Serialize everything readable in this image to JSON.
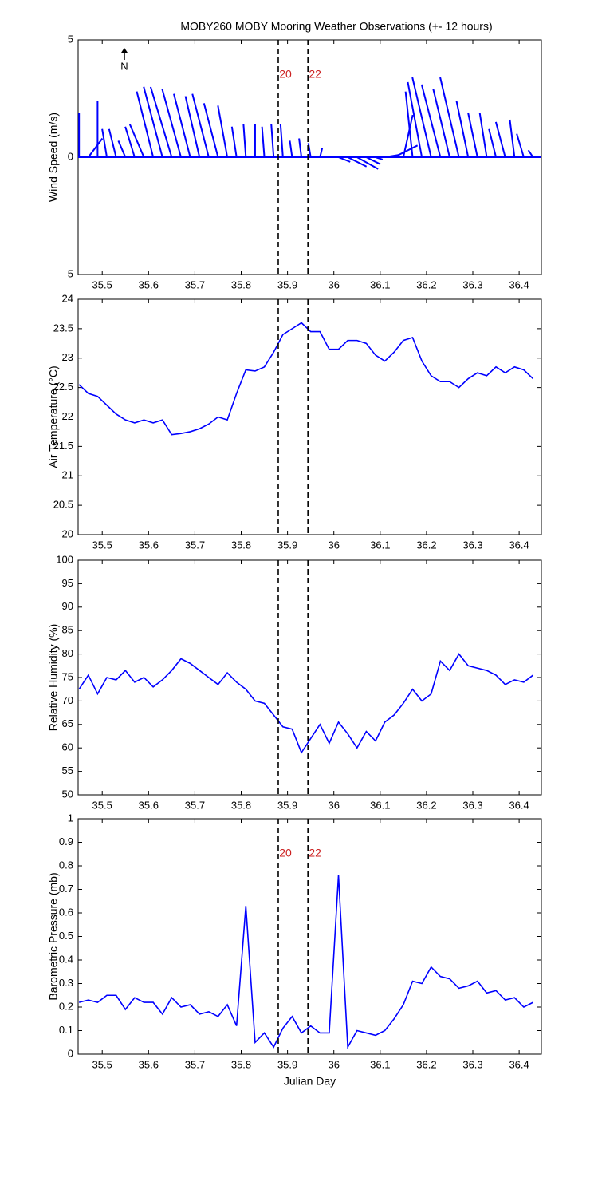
{
  "chart_data": [
    {
      "type": "stick",
      "title": "MOBY260 MOBY Mooring Weather Observations (+- 12 hours)",
      "ylabel": "Wind Speed (m/s)",
      "north_label": "N",
      "color": "#0000ff",
      "marker_color": "#cc2222",
      "x": [
        35.45,
        35.47,
        35.49,
        35.51,
        35.53,
        35.55,
        35.57,
        35.59,
        35.61,
        35.63,
        35.65,
        35.67,
        35.69,
        35.71,
        35.73,
        35.75,
        35.77,
        35.79,
        35.81,
        35.83,
        35.85,
        35.87,
        35.89,
        35.91,
        35.93,
        35.95,
        35.97,
        35.99,
        36.01,
        36.03,
        36.05,
        36.07,
        36.09,
        36.11,
        36.13,
        36.15,
        36.17,
        36.19,
        36.21,
        36.23,
        36.25,
        36.27,
        36.29,
        36.31,
        36.33,
        36.35,
        36.37,
        36.39,
        36.41,
        36.43
      ],
      "u": [
        0,
        0.6,
        0,
        -0.2,
        -0.3,
        -0.3,
        -0.4,
        -0.6,
        -0.7,
        -0.8,
        -0.9,
        -0.8,
        -0.7,
        -0.6,
        -0.7,
        -0.6,
        -0.4,
        -0.2,
        -0.1,
        0,
        -0.1,
        -0.1,
        -0.1,
        -0.1,
        -0.1,
        -0.1,
        0.1,
        0.1,
        0.5,
        0.8,
        0.9,
        0.6,
        0.3,
        0.6,
        1.0,
        0.4,
        -0.3,
        -0.6,
        -0.8,
        -0.8,
        -0.7,
        -0.8,
        -0.5,
        -0.4,
        -0.3,
        -0.3,
        -0.4,
        -0.2,
        -0.3,
        -0.2
      ],
      "v": [
        1.9,
        0.8,
        2.4,
        1.2,
        1.2,
        0.7,
        1.3,
        1.4,
        2.8,
        3.0,
        3.0,
        2.9,
        2.7,
        2.6,
        2.7,
        2.3,
        2.2,
        1.3,
        1.4,
        1.4,
        1.3,
        1.4,
        1.4,
        0.7,
        0.8,
        0.6,
        0.4,
        0,
        -0.2,
        -0.4,
        -0.5,
        -0.3,
        -0.1,
        0.1,
        0.5,
        1.8,
        2.8,
        3.2,
        3.4,
        3.1,
        2.9,
        3.4,
        2.4,
        1.9,
        1.9,
        1.2,
        1.5,
        1.6,
        1.0,
        0.3
      ],
      "xlim": [
        35.448,
        36.448
      ],
      "xticks": [
        35.5,
        35.6,
        35.7,
        35.8,
        35.9,
        36,
        36.1,
        36.2,
        36.3,
        36.4
      ],
      "ylim": [
        -5,
        5
      ],
      "yticks": [
        {
          "value": -5,
          "label": "5"
        },
        0,
        5
      ],
      "markers": [
        {
          "x": 35.88,
          "label": "20"
        },
        {
          "x": 35.944,
          "label": "22"
        }
      ]
    },
    {
      "type": "line",
      "ylabel": "Air Temperature (°C)",
      "color": "#0000ff",
      "x": [
        35.45,
        35.47,
        35.49,
        35.51,
        35.53,
        35.55,
        35.57,
        35.59,
        35.61,
        35.63,
        35.65,
        35.67,
        35.69,
        35.71,
        35.73,
        35.75,
        35.77,
        35.79,
        35.81,
        35.83,
        35.85,
        35.87,
        35.89,
        35.91,
        35.93,
        35.95,
        35.97,
        35.99,
        36.01,
        36.03,
        36.05,
        36.07,
        36.09,
        36.11,
        36.13,
        36.15,
        36.17,
        36.19,
        36.21,
        36.23,
        36.25,
        36.27,
        36.29,
        36.31,
        36.33,
        36.35,
        36.37,
        36.39,
        36.41,
        36.43
      ],
      "values": [
        22.55,
        22.4,
        22.35,
        22.2,
        22.05,
        21.95,
        21.9,
        21.95,
        21.9,
        21.95,
        21.7,
        21.72,
        21.75,
        21.8,
        21.88,
        22.0,
        21.95,
        22.4,
        22.8,
        22.78,
        22.85,
        23.1,
        23.4,
        23.5,
        23.6,
        23.45,
        23.45,
        23.15,
        23.15,
        23.3,
        23.3,
        23.25,
        23.05,
        22.95,
        23.1,
        23.3,
        23.35,
        22.95,
        22.7,
        22.6,
        22.6,
        22.5,
        22.65,
        22.75,
        22.7,
        22.85,
        22.75,
        22.85,
        22.8,
        22.65
      ],
      "xlim": [
        35.448,
        36.448
      ],
      "xticks": [
        35.5,
        35.6,
        35.7,
        35.8,
        35.9,
        36,
        36.1,
        36.2,
        36.3,
        36.4
      ],
      "ylim": [
        20,
        24
      ],
      "yticks": [
        20,
        20.5,
        21,
        21.5,
        22,
        22.5,
        23,
        23.5,
        24
      ],
      "markers": [
        {
          "x": 35.88
        },
        {
          "x": 35.944
        }
      ]
    },
    {
      "type": "line",
      "ylabel": "Relative Humidity (%)",
      "color": "#0000ff",
      "x": [
        35.45,
        35.47,
        35.49,
        35.51,
        35.53,
        35.55,
        35.57,
        35.59,
        35.61,
        35.63,
        35.65,
        35.67,
        35.69,
        35.71,
        35.73,
        35.75,
        35.77,
        35.79,
        35.81,
        35.83,
        35.85,
        35.87,
        35.89,
        35.91,
        35.93,
        35.95,
        35.97,
        35.99,
        36.01,
        36.03,
        36.05,
        36.07,
        36.09,
        36.11,
        36.13,
        36.15,
        36.17,
        36.19,
        36.21,
        36.23,
        36.25,
        36.27,
        36.29,
        36.31,
        36.33,
        36.35,
        36.37,
        36.39,
        36.41,
        36.43
      ],
      "values": [
        72.5,
        75.5,
        71.5,
        75,
        74.5,
        76.5,
        74,
        75,
        73,
        74.5,
        76.5,
        79,
        78,
        76.5,
        75,
        73.5,
        76,
        74,
        72.5,
        70,
        69.5,
        67,
        64.5,
        64,
        59,
        62,
        65,
        61,
        65.5,
        63,
        60,
        63.5,
        61.5,
        65.5,
        67,
        69.5,
        72.5,
        70,
        71.5,
        78.5,
        76.5,
        80,
        77.5,
        77,
        76.5,
        75.5,
        73.5,
        74.5,
        74,
        75.5
      ],
      "xlim": [
        35.448,
        36.448
      ],
      "xticks": [
        35.5,
        35.6,
        35.7,
        35.8,
        35.9,
        36,
        36.1,
        36.2,
        36.3,
        36.4
      ],
      "ylim": [
        50,
        100
      ],
      "yticks": [
        50,
        55,
        60,
        65,
        70,
        75,
        80,
        85,
        90,
        95,
        100
      ],
      "markers": [
        {
          "x": 35.88
        },
        {
          "x": 35.944
        }
      ]
    },
    {
      "type": "line",
      "ylabel": "Barometric Pressure (mb)",
      "xlabel": "Julian Day",
      "color": "#0000ff",
      "marker_color": "#cc2222",
      "x": [
        35.45,
        35.47,
        35.49,
        35.51,
        35.53,
        35.55,
        35.57,
        35.59,
        35.61,
        35.63,
        35.65,
        35.67,
        35.69,
        35.71,
        35.73,
        35.75,
        35.77,
        35.79,
        35.81,
        35.83,
        35.85,
        35.87,
        35.89,
        35.91,
        35.93,
        35.95,
        35.97,
        35.99,
        36.01,
        36.03,
        36.05,
        36.07,
        36.09,
        36.11,
        36.13,
        36.15,
        36.17,
        36.19,
        36.21,
        36.23,
        36.25,
        36.27,
        36.29,
        36.31,
        36.33,
        36.35,
        36.37,
        36.39,
        36.41,
        36.43
      ],
      "values": [
        0.22,
        0.23,
        0.22,
        0.25,
        0.25,
        0.19,
        0.24,
        0.22,
        0.22,
        0.17,
        0.24,
        0.2,
        0.21,
        0.17,
        0.18,
        0.16,
        0.21,
        0.12,
        0.63,
        0.05,
        0.09,
        0.03,
        0.11,
        0.16,
        0.09,
        0.12,
        0.09,
        0.09,
        0.76,
        0.03,
        0.1,
        0.09,
        0.08,
        0.1,
        0.15,
        0.21,
        0.31,
        0.3,
        0.37,
        0.33,
        0.32,
        0.28,
        0.29,
        0.31,
        0.26,
        0.27,
        0.23,
        0.24,
        0.2,
        0.22
      ],
      "xlim": [
        35.448,
        36.448
      ],
      "xticks": [
        35.5,
        35.6,
        35.7,
        35.8,
        35.9,
        36,
        36.1,
        36.2,
        36.3,
        36.4
      ],
      "ylim": [
        0,
        1
      ],
      "yticks": [
        0,
        0.1,
        0.2,
        0.3,
        0.4,
        0.5,
        0.6,
        0.7,
        0.8,
        0.9,
        1
      ],
      "markers": [
        {
          "x": 35.88,
          "label": "20"
        },
        {
          "x": 35.944,
          "label": "22"
        }
      ]
    }
  ]
}
